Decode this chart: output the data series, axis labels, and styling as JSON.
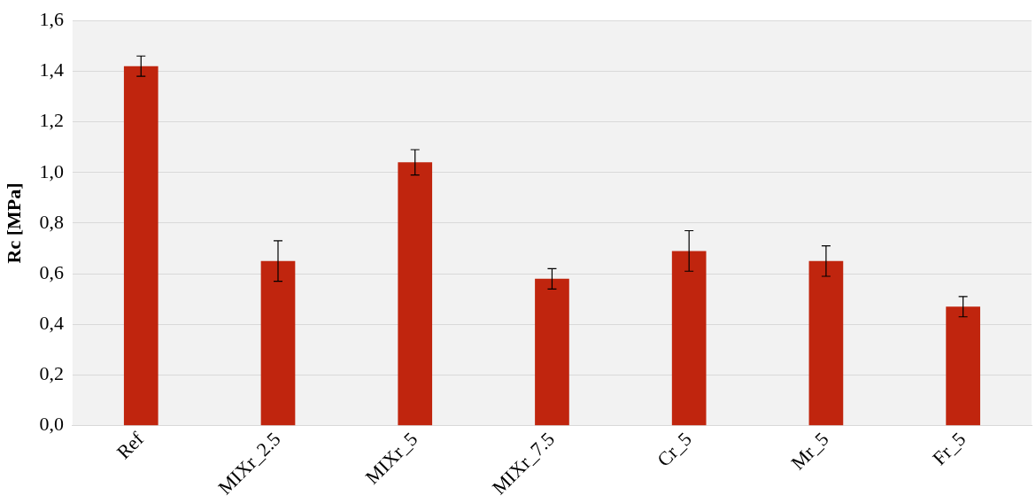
{
  "chart_data": {
    "type": "bar",
    "ylabel": "Rc [MPa]",
    "categories": [
      "Ref",
      "MIXr_2.5",
      "MIXr_5",
      "MIXr_7.5",
      "Cr_5",
      "Mr_5",
      "Fr_5"
    ],
    "values": [
      1.42,
      0.65,
      1.04,
      0.58,
      0.69,
      0.65,
      0.47
    ],
    "errors": [
      0.04,
      0.08,
      0.05,
      0.04,
      0.08,
      0.06,
      0.04
    ],
    "color": "#c0250e",
    "ylim": [
      0,
      1.6
    ],
    "yticks": [
      {
        "value": 0,
        "label": "0,0"
      },
      {
        "value": 0.2,
        "label": "0,2"
      },
      {
        "value": 0.4,
        "label": "0,4"
      },
      {
        "value": 0.6,
        "label": "0,6"
      },
      {
        "value": 0.8,
        "label": "0,8"
      },
      {
        "value": 1,
        "label": "1,0"
      },
      {
        "value": 1.2,
        "label": "1,2"
      },
      {
        "value": 1.4,
        "label": "1,4"
      },
      {
        "value": 1.6,
        "label": "1,6"
      }
    ],
    "grid": "y"
  }
}
